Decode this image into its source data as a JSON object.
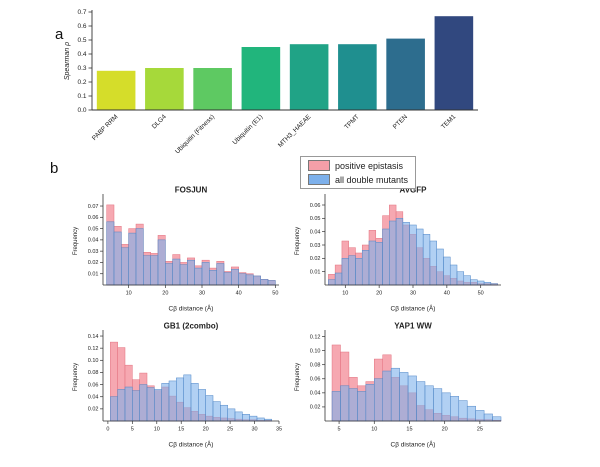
{
  "figure": {
    "panel_a_label": "a",
    "panel_b_label": "b"
  },
  "legend": {
    "items": [
      {
        "label": "positive epistasis",
        "color": "#f59fa8"
      },
      {
        "label": "all double mutants",
        "color": "#7db0eb"
      }
    ]
  },
  "chart_data": [
    {
      "type": "bar",
      "title": "",
      "xlabel": "",
      "ylabel": "Spearman ρ",
      "categories": [
        "PABP RRM",
        "DLG4",
        "Ubiquitin (Fitness)",
        "Ubiquitin (E1)",
        "MTH3_HAEAE",
        "TPMT",
        "PTEN",
        "TEM1"
      ],
      "values": [
        0.28,
        0.3,
        0.3,
        0.45,
        0.47,
        0.47,
        0.51,
        0.67
      ],
      "colors": [
        "#d5dd2a",
        "#a6d93a",
        "#5ec962",
        "#21b57c",
        "#20a386",
        "#1f8f8f",
        "#2d6d8e",
        "#31487f"
      ],
      "ylim": [
        0,
        0.7
      ],
      "yticks": [
        0,
        0.1,
        0.2,
        0.3,
        0.4,
        0.5,
        0.6,
        0.7
      ]
    },
    {
      "type": "histogram",
      "title": "FOSJUN",
      "xlabel": "Cβ distance (Å)",
      "ylabel": "Frequency",
      "xlim": [
        3,
        51
      ],
      "ylim": [
        0,
        0.078
      ],
      "bin_start": 4,
      "bin_width": 2,
      "xticks": [
        10,
        20,
        30,
        40,
        50
      ],
      "yticks": [
        0.01,
        0.02,
        0.03,
        0.04,
        0.05,
        0.06,
        0.07
      ],
      "series": {
        "positive_epistasis": [
          0.071,
          0.052,
          0.036,
          0.05,
          0.054,
          0.029,
          0.028,
          0.044,
          0.021,
          0.027,
          0.02,
          0.024,
          0.017,
          0.022,
          0.015,
          0.021,
          0.012,
          0.016,
          0.011,
          0.01,
          0.008,
          0.005,
          0.004
        ],
        "all_double_mutants": [
          0.056,
          0.047,
          0.033,
          0.046,
          0.05,
          0.026,
          0.026,
          0.04,
          0.019,
          0.023,
          0.018,
          0.022,
          0.015,
          0.02,
          0.013,
          0.019,
          0.011,
          0.014,
          0.01,
          0.009,
          0.008,
          0.005,
          0.004
        ]
      }
    },
    {
      "type": "histogram",
      "title": "AVGFP",
      "xlabel": "Cβ distance (Å)",
      "ylabel": "Frequency",
      "xlim": [
        4,
        56
      ],
      "ylim": [
        0,
        0.066
      ],
      "bin_start": 5,
      "bin_width": 2,
      "xticks": [
        10,
        20,
        30,
        40,
        50
      ],
      "yticks": [
        0.01,
        0.02,
        0.03,
        0.04,
        0.05,
        0.06
      ],
      "series": {
        "positive_epistasis": [
          0.008,
          0.015,
          0.033,
          0.028,
          0.024,
          0.03,
          0.041,
          0.035,
          0.052,
          0.06,
          0.055,
          0.045,
          0.038,
          0.028,
          0.02,
          0.014,
          0.01,
          0.007,
          0.005,
          0.003,
          0.002,
          0.002,
          0.001,
          0.001,
          0.001
        ],
        "all_double_mutants": [
          0.004,
          0.009,
          0.02,
          0.022,
          0.02,
          0.026,
          0.033,
          0.032,
          0.042,
          0.048,
          0.05,
          0.047,
          0.045,
          0.042,
          0.038,
          0.033,
          0.027,
          0.021,
          0.015,
          0.01,
          0.007,
          0.004,
          0.003,
          0.002,
          0.001
        ]
      }
    },
    {
      "type": "histogram",
      "title": "GB1 (2combo)",
      "xlabel": "Cβ distance (Å)",
      "ylabel": "Frequency",
      "xlim": [
        -1,
        35
      ],
      "ylim": [
        0,
        0.145
      ],
      "bin_start": 0.5,
      "bin_width": 1.5,
      "xticks": [
        0,
        5,
        10,
        15,
        20,
        25,
        30,
        35
      ],
      "yticks": [
        0.02,
        0.04,
        0.06,
        0.08,
        0.1,
        0.12,
        0.14
      ],
      "series": {
        "positive_epistasis": [
          0.13,
          0.121,
          0.092,
          0.068,
          0.079,
          0.058,
          0.05,
          0.056,
          0.041,
          0.031,
          0.022,
          0.016,
          0.011,
          0.008,
          0.006,
          0.005,
          0.004,
          0.003,
          0.002,
          0.002,
          0.001,
          0.001
        ],
        "all_double_mutants": [
          0.04,
          0.052,
          0.056,
          0.05,
          0.06,
          0.055,
          0.052,
          0.062,
          0.066,
          0.071,
          0.076,
          0.062,
          0.052,
          0.042,
          0.032,
          0.026,
          0.02,
          0.015,
          0.011,
          0.008,
          0.005,
          0.003
        ]
      }
    },
    {
      "type": "histogram",
      "title": "YAP1 WW",
      "xlabel": "Cβ distance (Å)",
      "ylabel": "Frequency",
      "xlim": [
        3,
        28
      ],
      "ylim": [
        0,
        0.125
      ],
      "bin_start": 4,
      "bin_width": 1.2,
      "xticks": [
        5,
        10,
        15,
        20,
        25
      ],
      "yticks": [
        0.02,
        0.04,
        0.06,
        0.08,
        0.1,
        0.12
      ],
      "series": {
        "positive_epistasis": [
          0.108,
          0.098,
          0.062,
          0.05,
          0.056,
          0.088,
          0.094,
          0.062,
          0.05,
          0.04,
          0.022,
          0.016,
          0.011,
          0.008,
          0.006,
          0.004,
          0.003,
          0.002,
          0.002,
          0.001
        ],
        "all_double_mutants": [
          0.042,
          0.05,
          0.046,
          0.042,
          0.052,
          0.06,
          0.071,
          0.075,
          0.069,
          0.064,
          0.056,
          0.05,
          0.046,
          0.04,
          0.035,
          0.029,
          0.021,
          0.015,
          0.01,
          0.006
        ]
      }
    }
  ]
}
